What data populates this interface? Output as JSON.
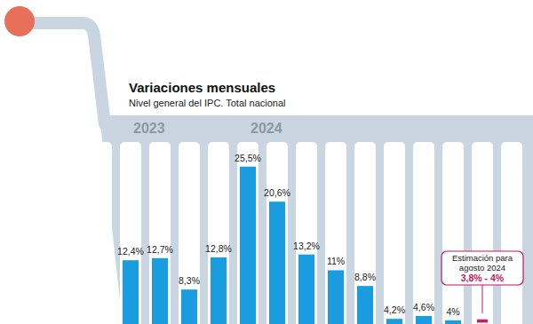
{
  "chart_data": {
    "type": "bar",
    "title": "Variaciones mensuales",
    "subtitle": "Nivel general del IPC. Total nacional",
    "categories": [
      null,
      null,
      null,
      null,
      null,
      null,
      null,
      null,
      null,
      null,
      null,
      null
    ],
    "values": [
      12.4,
      12.7,
      8.3,
      12.8,
      25.5,
      20.6,
      13.2,
      11,
      8.8,
      4.2,
      4.6,
      4
    ],
    "value_labels": [
      "12,4%",
      "12,7%",
      "8,3%",
      "12,8%",
      "25,5%",
      "20,6%",
      "13,2%",
      "11%",
      "8,8%",
      "4,2%",
      "4,6%",
      "4%"
    ],
    "color": "#1a9de0",
    "ylim": [
      0,
      30
    ],
    "grid": false,
    "data_labels": true,
    "tick_labels": false,
    "annotations": [
      "2023",
      "2024"
    ],
    "estimate": {
      "text": [
        "Estimación para",
        "agosto 2024"
      ],
      "label": "3,8% - 4%",
      "values": [
        3.8,
        4
      ],
      "color": "#c2185b"
    }
  }
}
